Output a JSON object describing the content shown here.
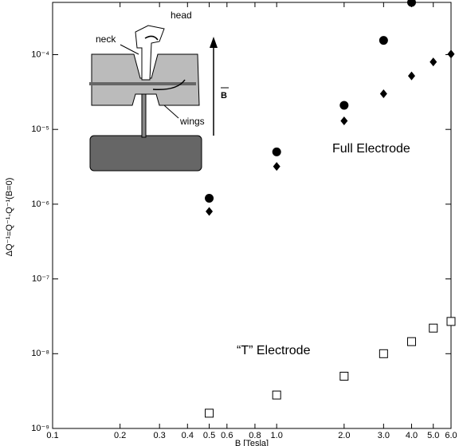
{
  "chart_data": {
    "type": "scatter",
    "x_label": "B [Tesla]",
    "y_label": "ΔQ⁻¹=Q⁻¹-Q⁻¹(B=0)",
    "annotations": [
      "Full Electrode",
      "“T” Electrode"
    ],
    "inset": {
      "head": "head",
      "neck": "neck",
      "wings": "wings",
      "field": "B"
    },
    "log_x": true,
    "log_y": true,
    "xlim": [
      0.1,
      6.0
    ],
    "ylim": [
      1e-09,
      0.0005
    ],
    "xticks": [
      0.1,
      0.2,
      0.3,
      0.4,
      0.5,
      0.6,
      0.8,
      {
        "value": 1,
        "label": "1.0"
      },
      {
        "value": 2,
        "label": "2.0"
      },
      {
        "value": 3,
        "label": "3.0"
      },
      {
        "value": 4,
        "label": "4.0"
      },
      {
        "value": 5,
        "label": "5.0"
      },
      {
        "value": 6,
        "label": "6.0"
      }
    ],
    "yticks": [
      {
        "value": 1e-09,
        "label": "10⁻⁹"
      },
      {
        "value": 1e-08,
        "label": "10⁻⁸"
      },
      {
        "value": 1e-07,
        "label": "10⁻⁷"
      },
      {
        "value": 1e-06,
        "label": "10⁻⁶"
      },
      {
        "value": 1e-05,
        "label": "10⁻⁵"
      },
      {
        "value": 0.0001,
        "label": "10⁻⁴"
      }
    ],
    "series": [
      {
        "marker": "circle",
        "color": "#000000",
        "x": [
          0.5,
          1.0,
          2.0,
          3.0,
          4.0
        ],
        "values": [
          1.2e-06,
          5e-06,
          2.1e-05,
          0.000155,
          0.0005
        ]
      },
      {
        "marker": "diamond",
        "color": "#000000",
        "x": [
          0.5,
          1.0,
          2.0,
          3.0,
          4.0,
          5.0,
          6.0
        ],
        "values": [
          8e-07,
          3.2e-06,
          1.3e-05,
          3e-05,
          5.2e-05,
          8e-05,
          0.000102
        ]
      },
      {
        "marker": "square",
        "color": "#000000",
        "x": [
          0.5,
          1.0,
          2.0,
          3.0,
          4.0,
          5.0,
          6.0
        ],
        "values": [
          1.6e-09,
          2.8e-09,
          5e-09,
          1e-08,
          1.45e-08,
          2.2e-08,
          2.7e-08
        ]
      }
    ]
  }
}
